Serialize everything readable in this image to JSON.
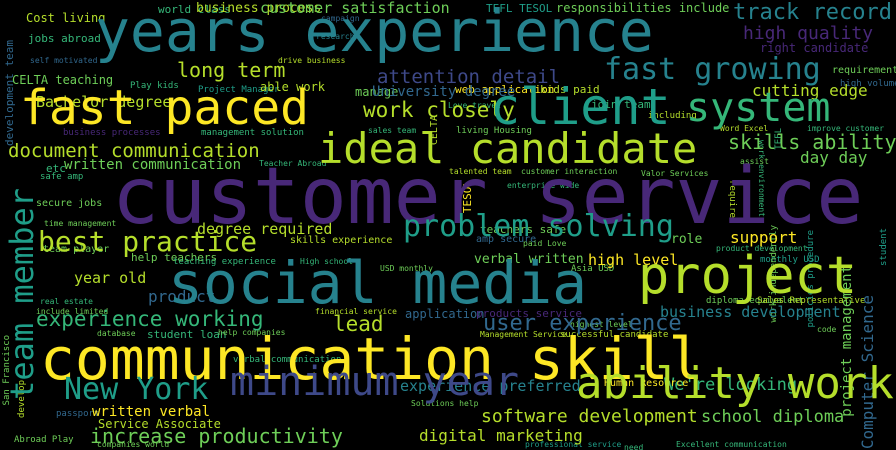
{
  "colors": {
    "background": "#000000",
    "yellow": "#FDE725",
    "light_green": "#B5DE2B",
    "green": "#6ECE58",
    "teal_green": "#35B779",
    "teal": "#1F9E89",
    "blue_teal": "#26828E",
    "blue": "#31688E",
    "indigo": "#3E4989",
    "purple": "#482878",
    "dark_purple": "#440154"
  },
  "words": {
    "years_experience": "years experience",
    "customer_service": "customer service",
    "communication_skill": "communication skill",
    "fast_paced": "fast paced",
    "client": "client",
    "system": "system",
    "social_media": "social media",
    "project": "project",
    "ideal_candidate": "ideal candidate",
    "minimum_year": "minimum year",
    "ability_work": "ability work",
    "team_member": "team member",
    "fast_growing": "fast growing",
    "problem_solving": "problem solving",
    "best_practice": "best practice",
    "new_york": "New York",
    "long_term": "long term",
    "work_closely": "work closely",
    "document_communication": "document communication",
    "attention_detail": "attention detail",
    "track_record": "track record",
    "high_quality": "high quality",
    "skills_ability": "skills ability",
    "increase_productivity": "increase productivity",
    "software_development": "software development",
    "experience_working": "experience working",
    "user_experience": "user experience",
    "support": "support",
    "lead": "lead",
    "customer_satisfaction": "customer satisfaction",
    "business_process": "business process",
    "bachelor_degree": "Bachelor degree",
    "university_degree": "University degree",
    "written_communication": "written communication",
    "day_day": "day day",
    "cutting_edge": "cutting edge",
    "right_candidate": "right candidate",
    "business_development": "business development",
    "high_level": "high level",
    "verbal_written": "verbal written",
    "degree_required": "degree required",
    "year_old": "year old",
    "product": "product",
    "written_verbal": "written verbal",
    "service_associate": "Service Associate",
    "digital_marketing": "digital marketing",
    "school_diploma": "school diploma",
    "experience_preferred": "experience preferred",
    "were_looking": "We're looking",
    "human_resource": "Human Resource",
    "project_management": "project management",
    "computer_science": "Computer Science",
    "world_class": "world class",
    "cost_living": "Cost living",
    "jobs_abroad": "jobs abroad",
    "celta_teaching": "CELTA teaching",
    "play_kids": "Play kids",
    "manage": "manage",
    "web_application": "web application",
    "kids_paid": "kids paid",
    "tefl_tesol": "TEFL TESOL",
    "responsibilities_include": "responsibilities include",
    "etc": "etc",
    "safe_amp": "safe amp",
    "secure_jobs": "secure jobs",
    "teachers_safe": "teachers safe",
    "role": "role",
    "team_player": "team player",
    "help_teachers": "help teachers",
    "teaching_experience": "teaching experience",
    "skills_experience": "skills experience",
    "student_loan": "student loan",
    "financial_service": "financial service",
    "application": "application",
    "products_service": "products service",
    "sales_representative": "Sales Representative",
    "diploma_equivalent": "diploma equivalent",
    "monthly_usd": "monthly USD",
    "usd_monthly": "USD monthly",
    "asia_usd": "Asia USD",
    "help_companies": "help companies",
    "companies_world": "companies world",
    "professional_service": "professional service",
    "excellent_communication": "Excellent communication",
    "verbal_communication": "verbal communication",
    "management_service": "Management Service",
    "successful_candidate": "successful candidate",
    "solutions_help": "Solutions help",
    "business_processes": "business processes",
    "management_solution": "management solution",
    "sales_team": "sales team",
    "living_housing": "living Housing",
    "teacher_abroad": "Teacher Abroad",
    "talented_team": "talented team",
    "customer_interaction": "customer interaction",
    "valor_services": "Valor Services",
    "enterprise_wide": "enterprise wide",
    "word_excel": "Word Excel",
    "improve_customer": "improve customer",
    "assist": "assist",
    "required": "required",
    "including": "including",
    "join_team": "join team",
    "love_travel": "Love travel",
    "drive_business": "drive business",
    "able_work": "able work",
    "project_manager": "Project Manager",
    "research": "research",
    "campaign": "campaign",
    "self_motivated": "self motivated",
    "high_volume": "high volume",
    "requirement": "requirement",
    "development_team": "development team",
    "work_environment": "work environment",
    "work_independently": "work independently",
    "policies_procedure": "policies procedure",
    "product_development": "product development",
    "high_school": "High school",
    "highest_level": "highest level",
    "paid_love": "paid Love",
    "amp_secure": "amp secure",
    "abroad_play": "Abroad Play",
    "san_francisco": "San Francisco",
    "develop": "develop",
    "real_estate": "real estate",
    "include_limited": "include limited",
    "time_management": "time management",
    "database": "database",
    "code": "code",
    "need": "need",
    "passport": "passport",
    "celta": "CELTA",
    "tesol": "TESOL",
    "tefl": "TEFL",
    "student": "student"
  }
}
